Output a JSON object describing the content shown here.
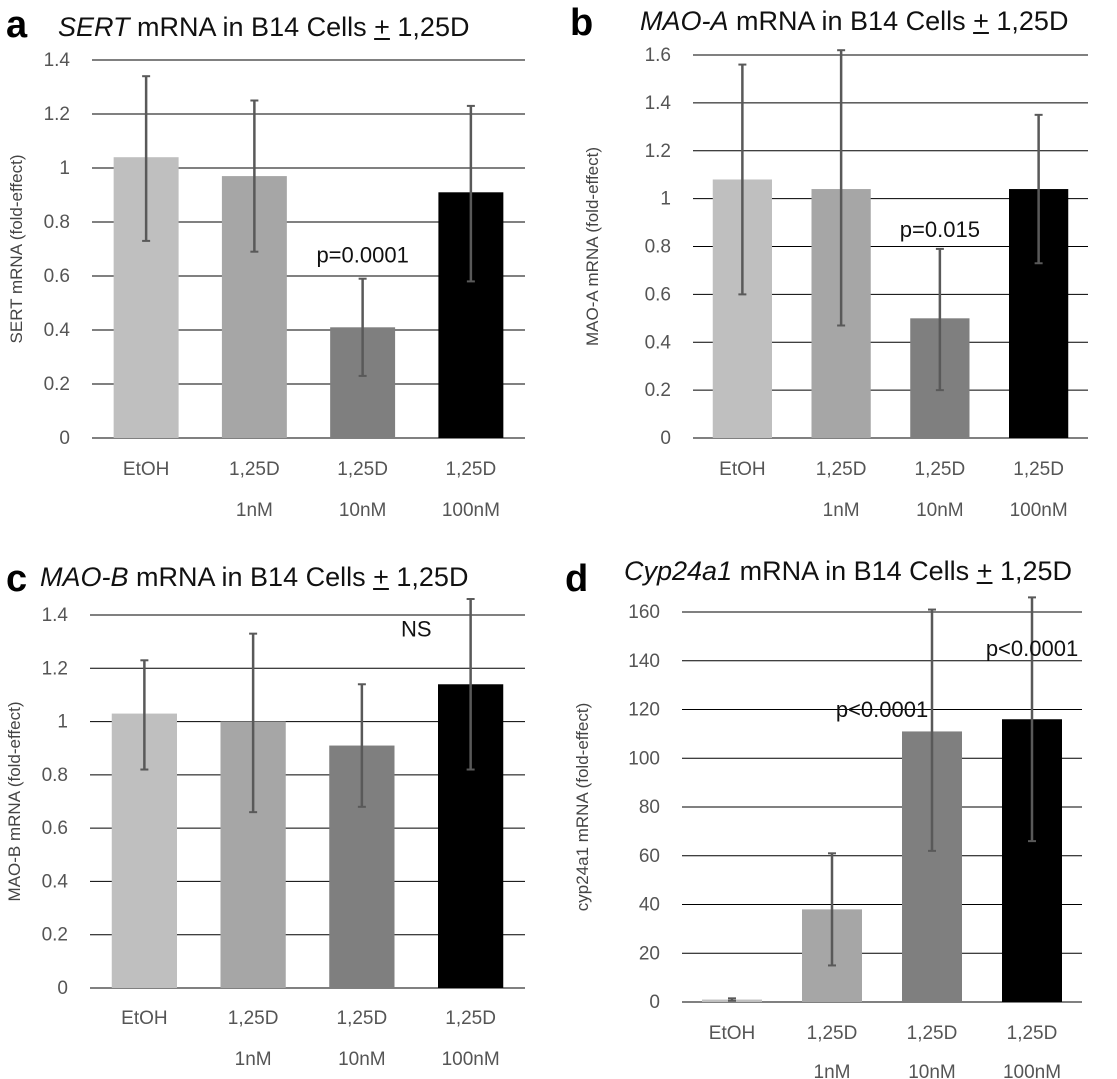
{
  "colors": {
    "bar_etoh": "#bfbfbf",
    "bar_1nm": "#a6a6a6",
    "bar_10nm": "#7f7f7f",
    "bar_100nm": "#000000",
    "error_bar": "#595959",
    "grid": "#000000"
  },
  "chart_data": [
    {
      "panel": "a",
      "type": "bar",
      "title_gene": "SERT",
      "title_rest": " mRNA in B14 Cells ",
      "title_pm": "+",
      "title_end": " 1,25D",
      "ylabel": "SERT mRNA (fold-effect)",
      "ylim": [
        0,
        1.4
      ],
      "yticks": [
        0,
        0.2,
        0.4,
        0.6,
        0.8,
        1,
        1.2,
        1.4
      ],
      "ytick_labels": [
        "0",
        "0.2",
        "0.4",
        "0.6",
        "0.8",
        "1",
        "1.2",
        "1.4"
      ],
      "categories": [
        [
          "EtOH"
        ],
        [
          "1,25D",
          "1nM"
        ],
        [
          "1,25D",
          "10nM"
        ],
        [
          "1,25D",
          "100nM"
        ]
      ],
      "values": [
        1.04,
        0.97,
        0.41,
        0.91
      ],
      "err_low": [
        0.73,
        0.69,
        0.23,
        0.58
      ],
      "err_high": [
        1.34,
        1.25,
        0.59,
        1.23
      ],
      "annotations": [
        {
          "text": "p=0.0001",
          "x_index": 2,
          "y": 0.65
        }
      ]
    },
    {
      "panel": "b",
      "type": "bar",
      "title_gene": "MAO-A",
      "title_rest": " mRNA in B14 Cells ",
      "title_pm": "+",
      "title_end": " 1,25D",
      "ylabel": "MAO-A mRNA (fold-effect)",
      "ylim": [
        0,
        1.6
      ],
      "yticks": [
        0,
        0.2,
        0.4,
        0.6,
        0.8,
        1,
        1.2,
        1.4,
        1.6
      ],
      "ytick_labels": [
        "0",
        "0.2",
        "0.4",
        "0.6",
        "0.8",
        "1",
        "1.2",
        "1.4",
        "1.6"
      ],
      "categories": [
        [
          "EtOH"
        ],
        [
          "1,25D",
          "1nM"
        ],
        [
          "1,25D",
          "10nM"
        ],
        [
          "1,25D",
          "100nM"
        ]
      ],
      "values": [
        1.08,
        1.04,
        0.5,
        1.04
      ],
      "err_low": [
        0.6,
        0.47,
        0.2,
        0.73
      ],
      "err_high": [
        1.56,
        1.62,
        0.79,
        1.35
      ],
      "annotations": [
        {
          "text": "p=0.015",
          "x_index": 2,
          "y": 0.84
        }
      ]
    },
    {
      "panel": "c",
      "type": "bar",
      "title_gene": "MAO-B",
      "title_rest": " mRNA in B14 Cells ",
      "title_pm": "+",
      "title_end": " 1,25D",
      "ylabel": "MAO-B mRNA (fold-effect)",
      "ylim": [
        0,
        1.4
      ],
      "yticks": [
        0,
        0.2,
        0.4,
        0.6,
        0.8,
        1,
        1.2,
        1.4
      ],
      "ytick_labels": [
        "0",
        "0.2",
        "0.4",
        "0.6",
        "0.8",
        "1",
        "1.2",
        "1.4"
      ],
      "categories": [
        [
          "EtOH"
        ],
        [
          "1,25D",
          "1nM"
        ],
        [
          "1,25D",
          "10nM"
        ],
        [
          "1,25D",
          "100nM"
        ]
      ],
      "values": [
        1.03,
        1.0,
        0.91,
        1.14
      ],
      "err_low": [
        0.82,
        0.66,
        0.68,
        0.82
      ],
      "err_high": [
        1.23,
        1.33,
        1.14,
        1.46
      ],
      "annotations": [
        {
          "text": "NS",
          "x_index": 2.5,
          "y": 1.32
        }
      ]
    },
    {
      "panel": "d",
      "type": "bar",
      "title_gene": "Cyp24a1",
      "title_rest": " mRNA in B14 Cells ",
      "title_pm": "+",
      "title_end": " 1,25D",
      "ylabel": "cyp24a1 mRNA (fold-effect)",
      "ylim": [
        0,
        160
      ],
      "yticks": [
        0,
        20,
        40,
        60,
        80,
        100,
        120,
        140,
        160
      ],
      "ytick_labels": [
        "0",
        "20",
        "40",
        "60",
        "80",
        "100",
        "120",
        "140",
        "160"
      ],
      "categories": [
        [
          "EtOH"
        ],
        [
          "1,25D",
          "1nM"
        ],
        [
          "1,25D",
          "10nM"
        ],
        [
          "1,25D",
          "100nM"
        ]
      ],
      "values": [
        1,
        38,
        111,
        116
      ],
      "err_low": [
        0.5,
        15,
        62,
        66
      ],
      "err_high": [
        1.5,
        61,
        161,
        166
      ],
      "annotations": [
        {
          "text": "p<0.0001",
          "x_index": 1.5,
          "y": 117
        },
        {
          "text": "p<0.0001",
          "x_index": 3,
          "y": 142
        }
      ]
    }
  ]
}
